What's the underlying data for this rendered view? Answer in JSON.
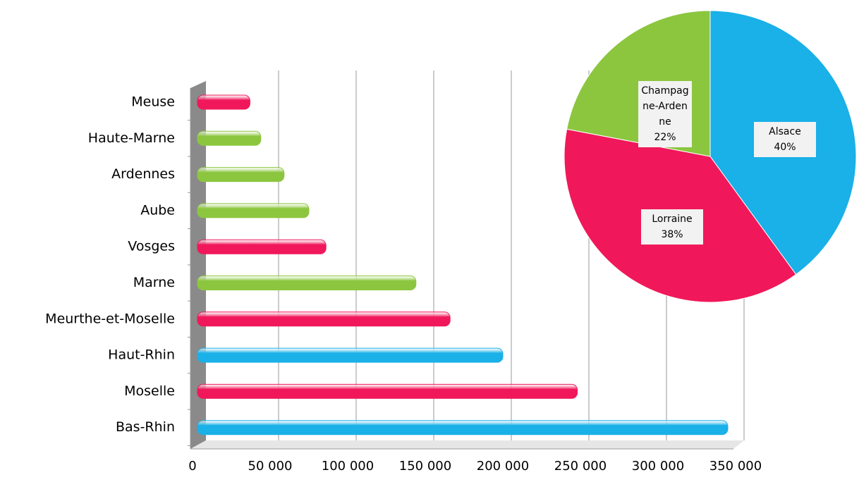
{
  "chart_data": [
    {
      "type": "bar",
      "categories": [
        "Meuse",
        "Haute-Marne",
        "Ardennes",
        "Aube",
        "Vosges",
        "Marne",
        "Meurthe-et-Moselle",
        "Haut-Rhin",
        "Moselle",
        "Bas-Rhin"
      ],
      "values": [
        37000,
        44000,
        59000,
        75000,
        86000,
        144000,
        166000,
        200000,
        248000,
        345000
      ],
      "colors": [
        "#f0185a",
        "#8cc63f",
        "#8cc63f",
        "#8cc63f",
        "#f0185a",
        "#8cc63f",
        "#f0185a",
        "#1ab0e8",
        "#f0185a",
        "#1ab0e8"
      ],
      "xlim": [
        0,
        350000
      ],
      "xticks": [
        0,
        {
          "value": 50000,
          "label": "50 000"
        },
        {
          "value": 100000,
          "label": "100 000"
        },
        {
          "value": 150000,
          "label": "150 000"
        },
        {
          "value": 200000,
          "label": "200 000"
        },
        {
          "value": 250000,
          "label": "250 000"
        },
        {
          "value": 300000,
          "label": "300 000"
        },
        {
          "value": 350000,
          "label": "350 000"
        }
      ],
      "grid": true
    },
    {
      "type": "pie",
      "categories": [
        "Alsace",
        "Lorraine",
        "Champagne-Ardenne"
      ],
      "values": [
        40,
        38,
        22
      ],
      "value_labels": [
        "40%",
        "38%",
        "22%"
      ],
      "colors": [
        "#1ab0e8",
        "#f0185a",
        "#8cc63f"
      ]
    }
  ]
}
